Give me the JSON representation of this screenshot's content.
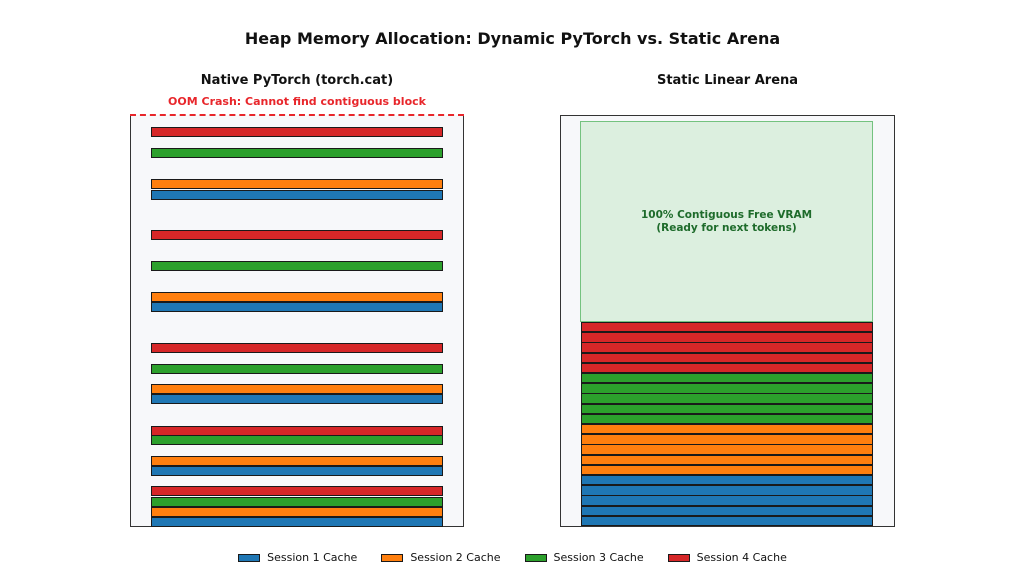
{
  "title": "Heap Memory Allocation: Dynamic PyTorch vs. Static Arena",
  "left_panel": {
    "title": "Native PyTorch (torch.cat)",
    "oom_label": "OOM Crash: Cannot find contiguous block",
    "blocks": [
      4,
      3,
      2,
      1,
      4,
      3,
      2,
      1,
      4,
      3,
      2,
      1,
      4,
      3,
      2,
      1,
      4,
      3,
      2,
      1
    ]
  },
  "right_panel": {
    "title": "Static Linear Arena",
    "free_label_line1": "100% Contiguous Free VRAM",
    "free_label_line2": "(Ready for next tokens)",
    "blocks": [
      4,
      4,
      4,
      4,
      4,
      3,
      3,
      3,
      3,
      3,
      2,
      2,
      2,
      2,
      2,
      1,
      1,
      1,
      1,
      1
    ]
  },
  "legend": [
    {
      "label": "Session 1 Cache",
      "session": 1
    },
    {
      "label": "Session 2 Cache",
      "session": 2
    },
    {
      "label": "Session 3 Cache",
      "session": 3
    },
    {
      "label": "Session 4 Cache",
      "session": 4
    }
  ],
  "colors": {
    "session1": "#1f77b4",
    "session2": "#ff7f0e",
    "session3": "#2ca02c",
    "session4": "#d62728",
    "oom": "#e8262b",
    "free_fill": "#dcefdf"
  }
}
